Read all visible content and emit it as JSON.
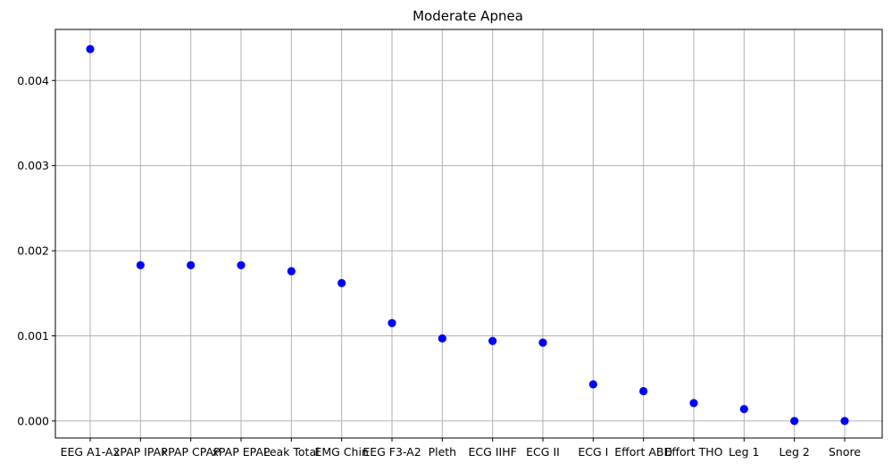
{
  "chart_data": {
    "type": "scatter",
    "title": "Moderate Apnea",
    "xlabel": "",
    "ylabel": "",
    "categories": [
      "EEG A1-A2",
      "xPAP IPAP",
      "xPAP CPAP",
      "xPAP EPAP",
      "Leak Total",
      "EMG Chin",
      "EEG F3-A2",
      "Pleth",
      "ECG IIHF",
      "ECG II",
      "ECG I",
      "Effort ABD",
      "Effort THO",
      "Leg 1",
      "Leg 2",
      "Snore"
    ],
    "values": [
      0.00437,
      0.00183,
      0.00183,
      0.00183,
      0.00176,
      0.00162,
      0.00115,
      0.00097,
      0.00094,
      0.00092,
      0.00043,
      0.00035,
      0.00021,
      0.00014,
      0.0,
      0.0
    ],
    "yticks": [
      "0.000",
      "0.001",
      "0.002",
      "0.003",
      "0.004"
    ],
    "ylim": [
      -0.0002,
      0.0046
    ],
    "grid": true,
    "marker_color": "#0000ff"
  }
}
